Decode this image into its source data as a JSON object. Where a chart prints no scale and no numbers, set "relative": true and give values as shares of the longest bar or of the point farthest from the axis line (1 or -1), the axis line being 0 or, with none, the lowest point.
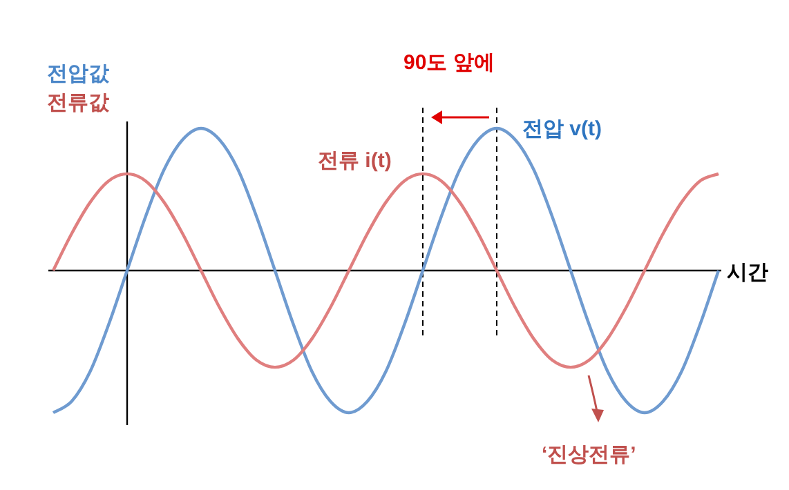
{
  "chart_data": {
    "type": "line",
    "relative": true,
    "xlabel": "시간",
    "categories": [
      null,
      null,
      null,
      null,
      null,
      null,
      null,
      null,
      null,
      null,
      null,
      null,
      null,
      null,
      null,
      null,
      null,
      null,
      null,
      null,
      null,
      null,
      null,
      null,
      null,
      null,
      null,
      null,
      null,
      null,
      null,
      null,
      null,
      null,
      null,
      null,
      null
    ],
    "series": [
      {
        "name": "전압 v(t)",
        "color": "#6f9bd0",
        "values": [
          -1,
          -0.92,
          -0.71,
          -0.38,
          0,
          0.38,
          0.71,
          0.92,
          1,
          0.92,
          0.71,
          0.38,
          0,
          -0.38,
          -0.71,
          -0.92,
          -1,
          -0.92,
          -0.71,
          -0.38,
          0,
          0.38,
          0.71,
          0.92,
          1,
          0.92,
          0.71,
          0.38,
          0,
          -0.38,
          -0.71,
          -0.92,
          -1,
          -0.92,
          -0.71,
          -0.38,
          0
        ]
      },
      {
        "name": "전류 i(t)",
        "color": "#e07f7f",
        "values": [
          0,
          0.26,
          0.48,
          0.63,
          0.68,
          0.63,
          0.48,
          0.26,
          0,
          -0.26,
          -0.48,
          -0.63,
          -0.68,
          -0.63,
          -0.48,
          -0.26,
          0,
          0.26,
          0.48,
          0.63,
          0.68,
          0.63,
          0.48,
          0.26,
          0,
          -0.26,
          -0.48,
          -0.63,
          -0.68,
          -0.63,
          -0.48,
          -0.26,
          0,
          0.26,
          0.48,
          0.63,
          0.68
        ]
      }
    ],
    "annotations": [
      "전압값",
      "전류값",
      "90도 앞에",
      "‘진상전류’"
    ]
  }
}
